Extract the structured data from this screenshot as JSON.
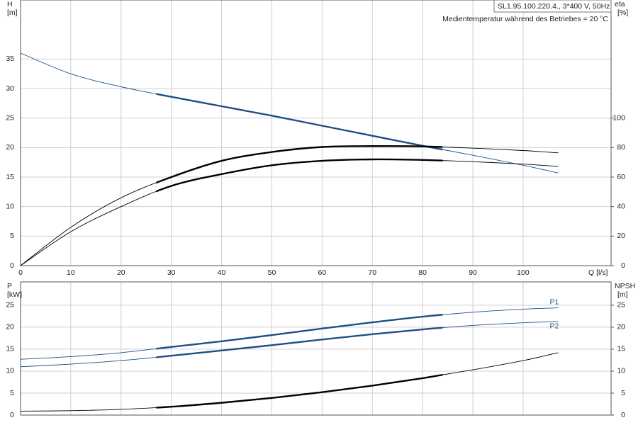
{
  "chart_data": [
    {
      "type": "line",
      "header": "SL1.95.100.220.4., 3*400 V, 50Hz",
      "subtitle": "Medientemperatur während des Betriebes = 20 °C",
      "ylabel": "H",
      "yunit": "[m]",
      "y2label": "eta",
      "y2unit": "[%]",
      "xlabel": "Q [l/s]",
      "x": [
        0,
        10,
        20,
        30,
        40,
        50,
        60,
        70,
        80,
        90,
        100,
        107
      ],
      "xlim": [
        0,
        117.5
      ],
      "xticks": [
        0,
        10,
        20,
        30,
        40,
        50,
        60,
        70,
        80,
        90,
        100
      ],
      "ylim": [
        0,
        45
      ],
      "yticks": [
        0,
        5,
        10,
        15,
        20,
        25,
        30,
        35
      ],
      "y2lim": [
        0,
        180
      ],
      "y2ticks": [
        0,
        20,
        40,
        60,
        80,
        100
      ],
      "grid": true,
      "operating_range": [
        27,
        84
      ],
      "series": [
        {
          "color": "#1d4f86",
          "values": [
            36,
            32.5,
            30.3,
            28.6,
            27,
            25.4,
            23.7,
            22,
            20.3,
            18.7,
            17,
            15.7
          ]
        },
        {
          "color": "#000000",
          "axis": "y2",
          "values": [
            0,
            26,
            46,
            60,
            71,
            77,
            80.4,
            81,
            80.8,
            79.6,
            78,
            76.4
          ]
        },
        {
          "color": "#000000",
          "axis": "y2",
          "values": [
            0,
            23,
            40,
            54,
            62,
            68,
            71,
            72,
            71.6,
            70.4,
            68.8,
            67.2
          ]
        }
      ]
    },
    {
      "type": "line",
      "ylabel": "P",
      "yunit": "[kW]",
      "y2label": "NPSH",
      "y2unit": "[m]",
      "x": [
        0,
        10,
        20,
        30,
        40,
        50,
        60,
        70,
        80,
        90,
        100,
        107
      ],
      "xlim": [
        0,
        117.5
      ],
      "ylim": [
        0,
        30.3
      ],
      "yticks": [
        0,
        5,
        10,
        15,
        20,
        25
      ],
      "y2lim": [
        0,
        30.3
      ],
      "y2ticks": [
        0,
        5,
        10,
        15,
        20,
        25
      ],
      "grid": true,
      "operating_range": [
        27,
        84
      ],
      "series": [
        {
          "name": "P1",
          "color": "#1d4f86",
          "values": [
            12.7,
            13.3,
            14.2,
            15.5,
            16.8,
            18.2,
            19.7,
            21.1,
            22.4,
            23.4,
            24.1,
            24.4
          ]
        },
        {
          "name": "P2",
          "color": "#1d4f86",
          "values": [
            11,
            11.6,
            12.4,
            13.5,
            14.7,
            15.9,
            17.2,
            18.4,
            19.5,
            20.4,
            21,
            21.3
          ]
        },
        {
          "color": "#000000",
          "axis": "y2",
          "values": [
            0.9,
            1,
            1.3,
            1.9,
            2.8,
            3.9,
            5.2,
            6.7,
            8.4,
            10.3,
            12.4,
            14.2
          ]
        }
      ]
    }
  ]
}
